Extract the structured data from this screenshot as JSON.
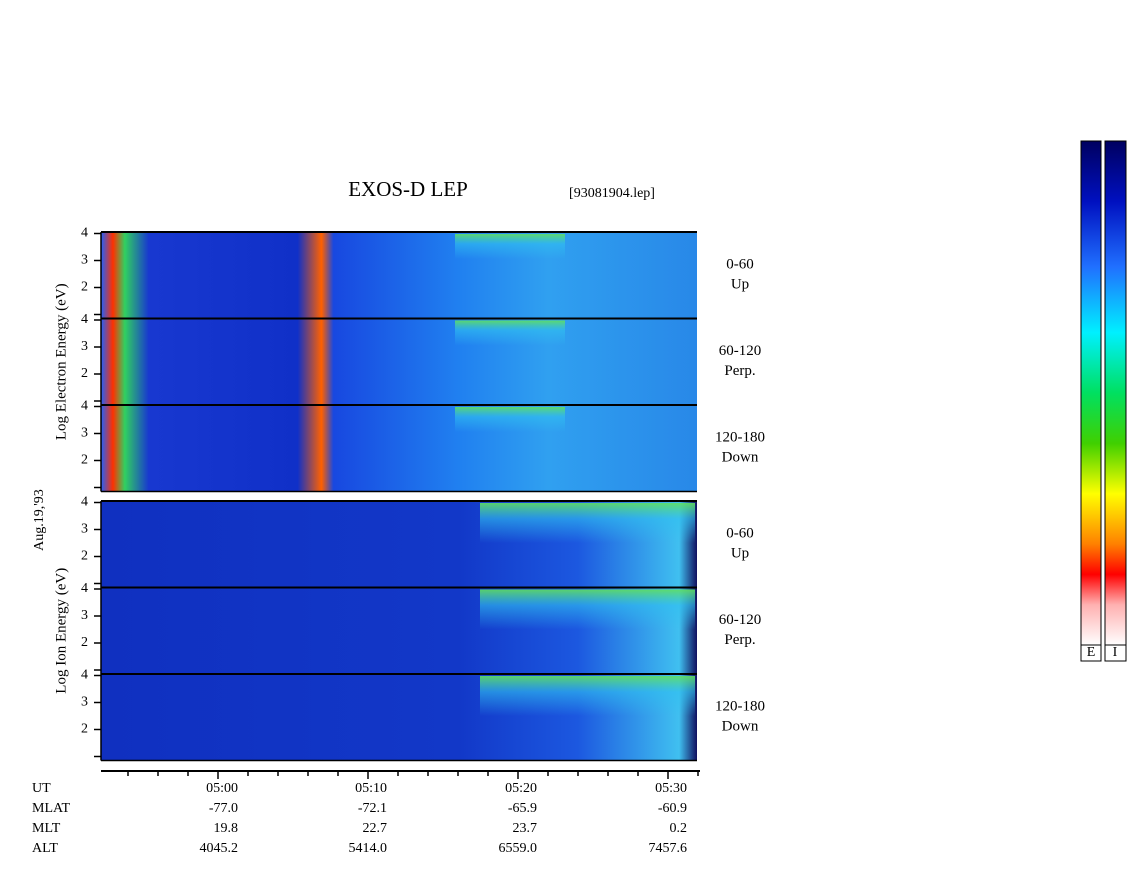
{
  "title": "EXOS-D LEP",
  "file": "[93081904.lep]",
  "date": "Aug.19,'93",
  "groups": [
    {
      "ylabel": "Log Electron Energy (eV)",
      "panels": [
        {
          "angle": "0-60",
          "direction": "Up",
          "yticks": [
            2,
            3,
            4
          ]
        },
        {
          "angle": "60-120",
          "direction": "Perp.",
          "yticks": [
            2,
            3,
            4
          ]
        },
        {
          "angle": "120-180",
          "direction": "Down",
          "yticks": [
            2,
            3,
            4
          ]
        }
      ]
    },
    {
      "ylabel": "Log Ion Energy (eV)",
      "panels": [
        {
          "angle": "0-60",
          "direction": "Up",
          "yticks": [
            2,
            3,
            4
          ]
        },
        {
          "angle": "60-120",
          "direction": "Perp.",
          "yticks": [
            2,
            3,
            4
          ]
        },
        {
          "angle": "120-180",
          "direction": "Down",
          "yticks": [
            2,
            3,
            4
          ]
        }
      ]
    }
  ],
  "ephemeris": {
    "labels": [
      "UT",
      "MLAT",
      "MLT",
      "ALT"
    ],
    "values": [
      [
        "05:00",
        "05:10",
        "05:20",
        "05:30"
      ],
      [
        "-77.0",
        "-72.1",
        "-65.9",
        "-60.9"
      ],
      [
        "19.8",
        "22.7",
        "23.7",
        "0.2"
      ],
      [
        "4045.2",
        "5414.0",
        "6559.0",
        "7457.6"
      ]
    ]
  },
  "colorbar": {
    "labels": [
      "E",
      "I"
    ]
  }
}
